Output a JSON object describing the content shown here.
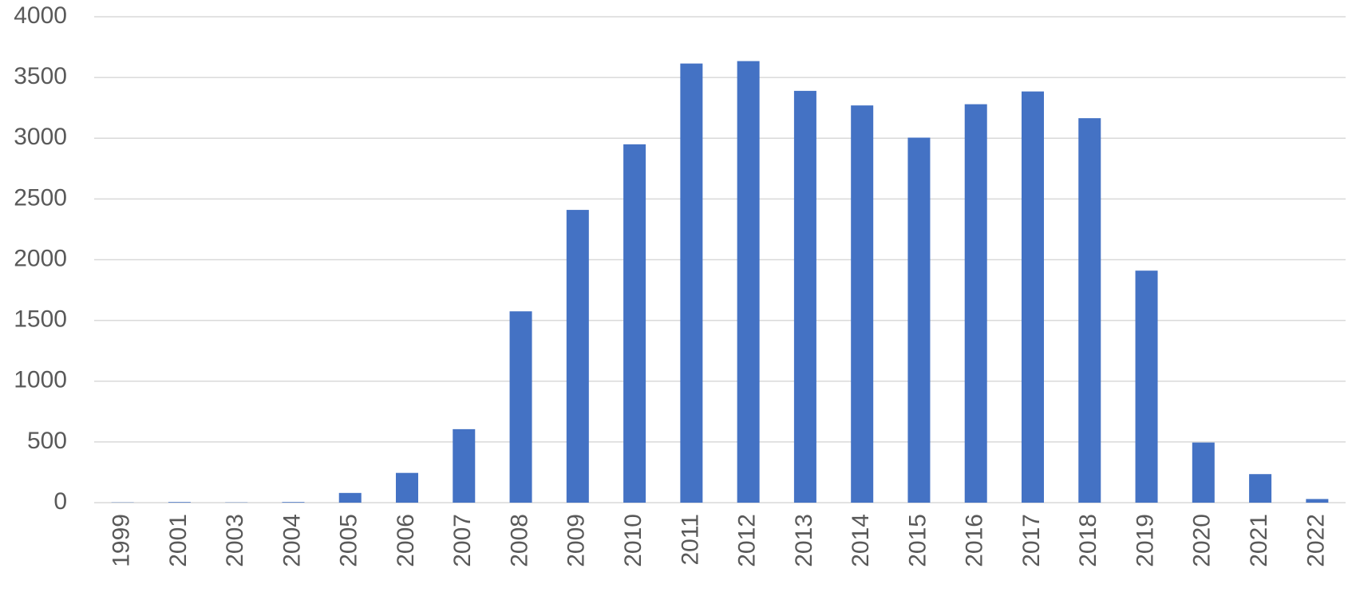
{
  "chart_data": {
    "type": "bar",
    "categories": [
      "1999",
      "2001",
      "2003",
      "2004",
      "2005",
      "2006",
      "2007",
      "2008",
      "2009",
      "2010",
      "2011",
      "2012",
      "2013",
      "2014",
      "2015",
      "2016",
      "2017",
      "2018",
      "2019",
      "2020",
      "2021",
      "2022"
    ],
    "values": [
      2,
      5,
      2,
      5,
      80,
      245,
      605,
      1575,
      2410,
      2950,
      3615,
      3635,
      3390,
      3270,
      3005,
      3280,
      3385,
      3165,
      1910,
      495,
      235,
      30
    ],
    "color": "#4472c4",
    "ylim": [
      0,
      4000
    ],
    "yticks": [
      0,
      500,
      1000,
      1500,
      2000,
      2500,
      3000,
      3500,
      4000
    ],
    "grid": true
  }
}
